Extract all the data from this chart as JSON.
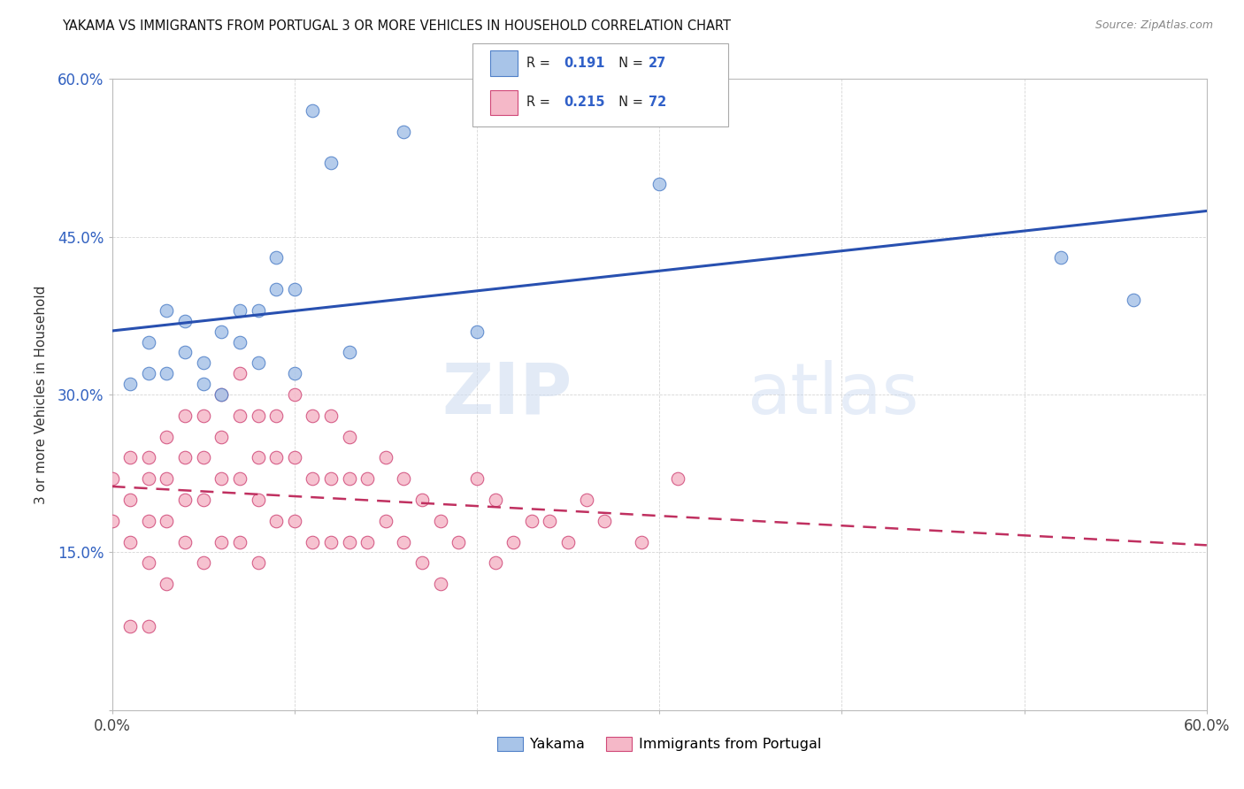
{
  "title": "YAKAMA VS IMMIGRANTS FROM PORTUGAL 3 OR MORE VEHICLES IN HOUSEHOLD CORRELATION CHART",
  "source": "Source: ZipAtlas.com",
  "ylabel": "3 or more Vehicles in Household",
  "xlabel": "",
  "xlim": [
    0.0,
    0.6
  ],
  "ylim": [
    0.0,
    0.6
  ],
  "xticks": [
    0.0,
    0.1,
    0.2,
    0.3,
    0.4,
    0.5,
    0.6
  ],
  "yticks": [
    0.0,
    0.15,
    0.3,
    0.45,
    0.6
  ],
  "legend_labels": [
    "Yakama",
    "Immigrants from Portugal"
  ],
  "legend_r1": "0.191",
  "legend_n1": "27",
  "legend_r2": "0.215",
  "legend_n2": "72",
  "blue_color": "#a8c4e8",
  "pink_color": "#f5b8c8",
  "blue_edge_color": "#5080c8",
  "pink_edge_color": "#d04878",
  "blue_line_color": "#2850b0",
  "pink_line_color": "#c03060",
  "watermark_zip": "ZIP",
  "watermark_atlas": "atlas",
  "yakama_x": [
    0.01,
    0.02,
    0.02,
    0.03,
    0.03,
    0.04,
    0.04,
    0.05,
    0.05,
    0.06,
    0.06,
    0.07,
    0.07,
    0.08,
    0.08,
    0.09,
    0.09,
    0.1,
    0.1,
    0.11,
    0.12,
    0.13,
    0.16,
    0.2,
    0.3,
    0.52,
    0.56
  ],
  "yakama_y": [
    0.31,
    0.32,
    0.35,
    0.32,
    0.38,
    0.34,
    0.37,
    0.31,
    0.33,
    0.3,
    0.36,
    0.38,
    0.35,
    0.33,
    0.38,
    0.4,
    0.43,
    0.32,
    0.4,
    0.57,
    0.52,
    0.34,
    0.55,
    0.36,
    0.5,
    0.43,
    0.39
  ],
  "portugal_x": [
    0.0,
    0.0,
    0.01,
    0.01,
    0.01,
    0.01,
    0.02,
    0.02,
    0.02,
    0.02,
    0.02,
    0.03,
    0.03,
    0.03,
    0.03,
    0.04,
    0.04,
    0.04,
    0.04,
    0.05,
    0.05,
    0.05,
    0.05,
    0.06,
    0.06,
    0.06,
    0.06,
    0.07,
    0.07,
    0.07,
    0.07,
    0.08,
    0.08,
    0.08,
    0.08,
    0.09,
    0.09,
    0.09,
    0.1,
    0.1,
    0.1,
    0.11,
    0.11,
    0.11,
    0.12,
    0.12,
    0.12,
    0.13,
    0.13,
    0.13,
    0.14,
    0.14,
    0.15,
    0.15,
    0.16,
    0.16,
    0.17,
    0.17,
    0.18,
    0.18,
    0.19,
    0.2,
    0.21,
    0.21,
    0.22,
    0.23,
    0.24,
    0.25,
    0.26,
    0.27,
    0.29,
    0.31
  ],
  "portugal_y": [
    0.22,
    0.18,
    0.24,
    0.2,
    0.16,
    0.08,
    0.24,
    0.22,
    0.18,
    0.14,
    0.08,
    0.26,
    0.22,
    0.18,
    0.12,
    0.28,
    0.24,
    0.2,
    0.16,
    0.28,
    0.24,
    0.2,
    0.14,
    0.3,
    0.26,
    0.22,
    0.16,
    0.32,
    0.28,
    0.22,
    0.16,
    0.28,
    0.24,
    0.2,
    0.14,
    0.28,
    0.24,
    0.18,
    0.3,
    0.24,
    0.18,
    0.28,
    0.22,
    0.16,
    0.28,
    0.22,
    0.16,
    0.26,
    0.22,
    0.16,
    0.22,
    0.16,
    0.24,
    0.18,
    0.22,
    0.16,
    0.2,
    0.14,
    0.18,
    0.12,
    0.16,
    0.22,
    0.2,
    0.14,
    0.16,
    0.18,
    0.18,
    0.16,
    0.2,
    0.18,
    0.16,
    0.22
  ]
}
